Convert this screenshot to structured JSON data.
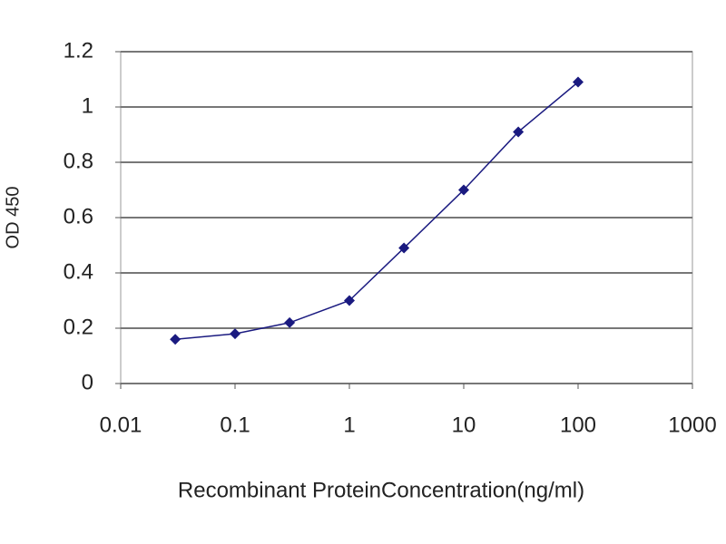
{
  "chart_data": {
    "type": "line",
    "x_label": "Recombinant ProteinConcentration(ng/ml)",
    "y_label": "OD 450",
    "x": [
      0.03,
      0.1,
      0.3,
      1,
      3,
      10,
      30,
      100
    ],
    "values": [
      0.16,
      0.18,
      0.22,
      0.3,
      0.49,
      0.7,
      0.91,
      1.09
    ],
    "color": "#1a1a80",
    "xscale": "log",
    "xlim": [
      0.01,
      1000
    ],
    "xticks": [
      0.01,
      0.1,
      1,
      10,
      100,
      1000
    ],
    "ylim": [
      0,
      1.2
    ],
    "yticks": [
      0,
      0.2,
      0.4,
      0.6,
      0.8,
      1,
      1.2
    ],
    "grid": true
  }
}
